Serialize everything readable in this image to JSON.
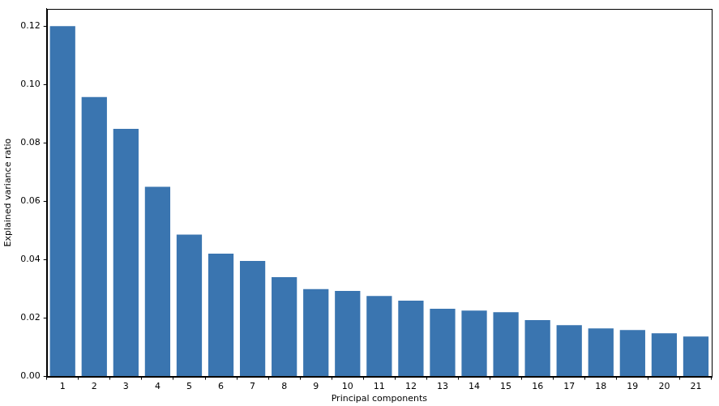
{
  "chart_data": {
    "type": "bar",
    "x_label": "Principal components",
    "y_label": "Explained variance ratio",
    "categories": [
      "1",
      "2",
      "3",
      "4",
      "5",
      "6",
      "7",
      "8",
      "9",
      "10",
      "11",
      "12",
      "13",
      "14",
      "15",
      "16",
      "17",
      "18",
      "19",
      "20",
      "21"
    ],
    "values": [
      0.12,
      0.0957,
      0.0848,
      0.065,
      0.0486,
      0.0421,
      0.0396,
      0.034,
      0.0299,
      0.0293,
      0.0276,
      0.026,
      0.0232,
      0.0226,
      0.022,
      0.0193,
      0.0176,
      0.0165,
      0.0159,
      0.0148,
      0.0137
    ],
    "color": "#3a75b0",
    "ylim": [
      0,
      0.126
    ],
    "yticks": [
      {
        "value": 0,
        "label": "0.00"
      },
      {
        "value": 0.02,
        "label": "0.02"
      },
      {
        "value": 0.04,
        "label": "0.04"
      },
      {
        "value": 0.06,
        "label": "0.06"
      },
      {
        "value": 0.08,
        "label": "0.08"
      },
      {
        "value": 0.1,
        "label": "0.10"
      },
      {
        "value": 0.12,
        "label": "0.12"
      }
    ],
    "grid": false
  }
}
